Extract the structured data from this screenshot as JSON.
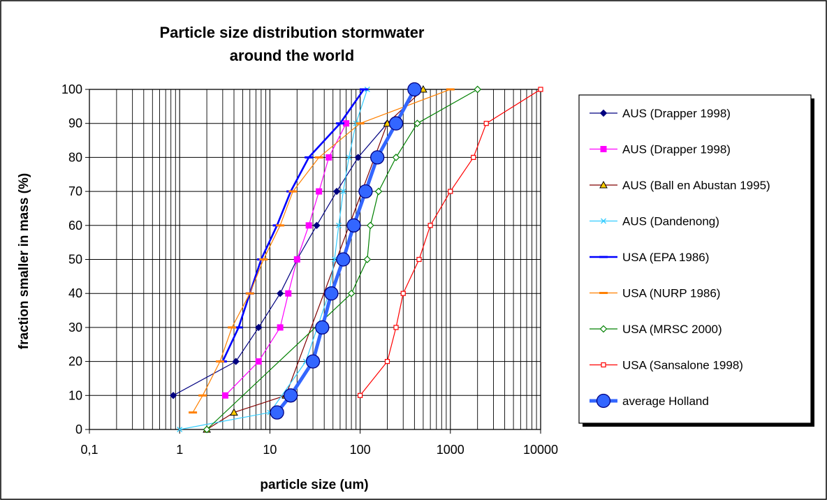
{
  "chart_data": {
    "type": "scatter",
    "title_lines": [
      "Particle size distribution stormwater",
      "around the world"
    ],
    "xlabel": "particle size (um)",
    "ylabel": "fraction smaller in mass (%)",
    "x_scale": "log",
    "xlim": [
      0.1,
      10000
    ],
    "ylim": [
      0,
      100
    ],
    "x_tick_labels": [
      "0,1",
      "1",
      "10",
      "100",
      "1000",
      "10000"
    ],
    "y_tick_labels": [
      "0",
      "10",
      "20",
      "30",
      "40",
      "50",
      "60",
      "70",
      "80",
      "90",
      "100"
    ],
    "grid": "on",
    "legend_position": "right",
    "series": [
      {
        "name": "AUS (Drapper 1998)",
        "color": "#000080",
        "marker": "diamond",
        "points": [
          [
            0.85,
            10
          ],
          [
            4.2,
            20
          ],
          [
            7.5,
            30
          ],
          [
            13,
            40
          ],
          [
            20,
            50
          ],
          [
            33,
            60
          ],
          [
            55,
            70
          ],
          [
            95,
            80
          ],
          [
            200,
            90
          ]
        ]
      },
      {
        "name": "AUS (Drapper 1998)",
        "color": "#ff00ff",
        "marker": "square",
        "points": [
          [
            3.2,
            10
          ],
          [
            7.5,
            20
          ],
          [
            13,
            30
          ],
          [
            16,
            40
          ],
          [
            20,
            50
          ],
          [
            27,
            60
          ],
          [
            35,
            70
          ],
          [
            45,
            80
          ],
          [
            70,
            90
          ]
        ]
      },
      {
        "name": "AUS (Ball en Abustan 1995)",
        "color": "#800000",
        "marker": "triangle",
        "points": [
          [
            2,
            0
          ],
          [
            4,
            5
          ],
          [
            15,
            10
          ],
          [
            200,
            90
          ],
          [
            500,
            100
          ]
        ]
      },
      {
        "name": "AUS (Dandenong)",
        "color": "#33ccff",
        "marker": "x",
        "points": [
          [
            1,
            0
          ],
          [
            10,
            5
          ],
          [
            25,
            20
          ],
          [
            45,
            40
          ],
          [
            52,
            50
          ],
          [
            58,
            60
          ],
          [
            65,
            70
          ],
          [
            75,
            80
          ],
          [
            90,
            90
          ],
          [
            120,
            100
          ]
        ]
      },
      {
        "name": "USA (EPA 1986)",
        "color": "#0000ff",
        "marker": "dash",
        "points": [
          [
            3,
            20
          ],
          [
            4.5,
            30
          ],
          [
            6,
            40
          ],
          [
            8,
            50
          ],
          [
            12,
            60
          ],
          [
            17,
            70
          ],
          [
            27,
            80
          ],
          [
            60,
            90
          ],
          [
            110,
            100
          ]
        ]
      },
      {
        "name": "USA (NURP 1986)",
        "color": "#ff8000",
        "marker": "dash",
        "points": [
          [
            1.4,
            5
          ],
          [
            1.8,
            10
          ],
          [
            2.8,
            20
          ],
          [
            3.8,
            30
          ],
          [
            6,
            40
          ],
          [
            8.5,
            50
          ],
          [
            13,
            60
          ],
          [
            18,
            70
          ],
          [
            35,
            80
          ],
          [
            100,
            90
          ],
          [
            1000,
            100
          ]
        ]
      },
      {
        "name": "USA (MRSC 2000)",
        "color": "#008000",
        "marker": "diamond-open",
        "points": [
          [
            2,
            0
          ],
          [
            80,
            40
          ],
          [
            120,
            50
          ],
          [
            130,
            60
          ],
          [
            160,
            70
          ],
          [
            250,
            80
          ],
          [
            430,
            90
          ],
          [
            2000,
            100
          ]
        ]
      },
      {
        "name": "USA (Sansalone 1998)",
        "color": "#ff0000",
        "marker": "square-open",
        "points": [
          [
            100,
            10
          ],
          [
            200,
            20
          ],
          [
            250,
            30
          ],
          [
            300,
            40
          ],
          [
            450,
            50
          ],
          [
            600,
            60
          ],
          [
            1000,
            70
          ],
          [
            1800,
            80
          ],
          [
            2500,
            90
          ],
          [
            10000,
            100
          ]
        ]
      },
      {
        "name": "average Holland",
        "color": "#3366ff",
        "marker": "circle",
        "points": [
          [
            12,
            5
          ],
          [
            17,
            10
          ],
          [
            30,
            20
          ],
          [
            38,
            30
          ],
          [
            48,
            40
          ],
          [
            65,
            50
          ],
          [
            85,
            60
          ],
          [
            115,
            70
          ],
          [
            155,
            80
          ],
          [
            250,
            90
          ],
          [
            400,
            100
          ]
        ]
      }
    ]
  }
}
